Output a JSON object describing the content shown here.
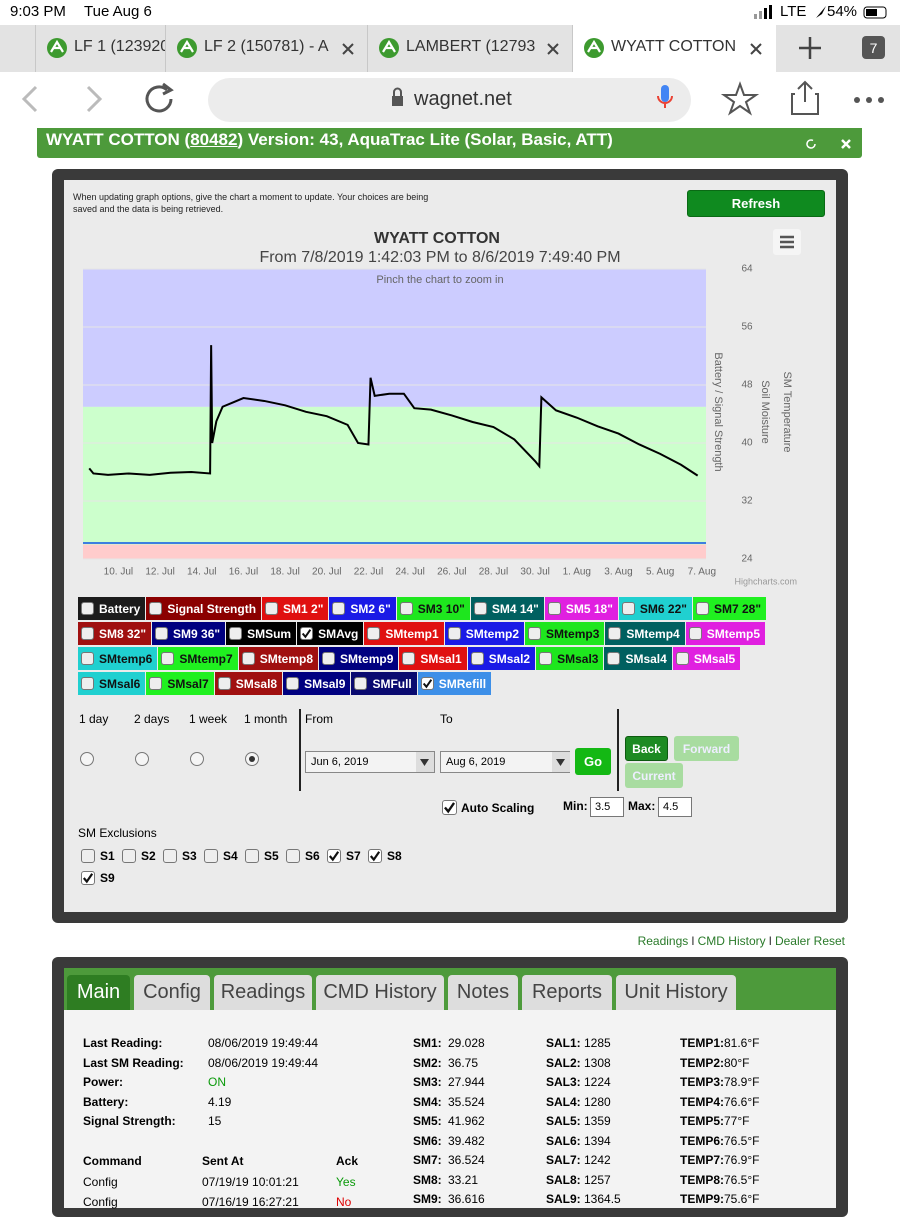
{
  "status_bar": {
    "time": "9:03 PM",
    "date": "Tue Aug 6",
    "network": "LTE",
    "battery": "54%"
  },
  "browser": {
    "tabs": [
      "LF 1 (123920",
      "LF 2 (150781) - A",
      "LAMBERT (12793",
      "WYATT COTTON"
    ],
    "tab_count": "7",
    "url": "wagnet.net"
  },
  "header": {
    "name": "WYATT COTTON (",
    "id": "80482",
    "version": ") Version: 43, AquaTrac Lite (Solar, Basic, ATT)"
  },
  "panel": {
    "notice": "When updating graph options, give the chart a moment to update. Your choices are being saved and the data is being retrieved.",
    "refresh": "Refresh"
  },
  "chart_data": {
    "type": "line",
    "title": "WYATT COTTON",
    "subtitle": "From 7/8/2019 1:42:03 PM to 8/6/2019 7:49:40 PM",
    "annotation": "Pinch the chart to zoom in",
    "credit": "Highcharts.com",
    "y_axis_titles": [
      "Battery / Signal Strength",
      "Soil Moisture",
      "SM Temperature"
    ],
    "x": [
      8.6,
      8.8,
      9.5,
      10.5,
      11.5,
      12.5,
      13.5,
      14.4,
      14.45,
      14.5,
      14.7,
      15,
      15.5,
      16,
      17,
      18,
      19,
      20,
      21,
      21.5,
      22,
      22.1,
      22.3,
      23,
      23.7,
      24.2,
      25,
      26,
      27,
      28,
      29,
      30,
      30.2,
      30.3,
      31,
      32,
      33,
      34,
      35,
      36,
      37,
      37.8
    ],
    "series": [
      {
        "color": "#000000",
        "values": [
          36.5,
          35.8,
          35.6,
          35.8,
          35.6,
          35.9,
          36,
          35.8,
          53.5,
          40,
          43,
          45,
          45.6,
          46.2,
          45.8,
          45.2,
          44.3,
          43.7,
          42.5,
          40,
          39.8,
          49,
          46.5,
          46.8,
          46.8,
          44.8,
          44.6,
          43.8,
          42.9,
          42.2,
          40.5,
          37.5,
          36.8,
          46.3,
          44.5,
          43.5,
          42.3,
          41.3,
          39.8,
          38.5,
          37,
          35.5
        ]
      }
    ],
    "bands": [
      {
        "from": 24,
        "to": 26,
        "color": "#ffcccc"
      },
      {
        "from": 26,
        "to": 45,
        "color": "#ccffcc"
      },
      {
        "from": 45,
        "to": 64,
        "color": "#ccccff"
      }
    ],
    "reference_lines": [
      {
        "value": 26.2,
        "color": "#3d7fe0"
      }
    ],
    "xlim": [
      8.3,
      38.2
    ],
    "xticks": [
      {
        "value": 10,
        "label": "10. Jul"
      },
      {
        "value": 12,
        "label": "12. Jul"
      },
      {
        "value": 14,
        "label": "14. Jul"
      },
      {
        "value": 16,
        "label": "16. Jul"
      },
      {
        "value": 18,
        "label": "18. Jul"
      },
      {
        "value": 20,
        "label": "20. Jul"
      },
      {
        "value": 22,
        "label": "22. Jul"
      },
      {
        "value": 24,
        "label": "24. Jul"
      },
      {
        "value": 26,
        "label": "26. Jul"
      },
      {
        "value": 28,
        "label": "28. Jul"
      },
      {
        "value": 30,
        "label": "30. Jul"
      },
      {
        "value": 32,
        "label": "1. Aug"
      },
      {
        "value": 34,
        "label": "3. Aug"
      },
      {
        "value": 36,
        "label": "5. Aug"
      },
      {
        "value": 38,
        "label": "7. Aug"
      }
    ],
    "ylim": [
      24,
      64
    ],
    "yticks": [
      24,
      32,
      40,
      48,
      56,
      64
    ],
    "grid": true
  },
  "series_toggles": [
    {
      "label": "Battery",
      "color": "#1c1c1c",
      "checked": false
    },
    {
      "label": "Signal Strength",
      "color": "#8b0000",
      "checked": false
    },
    {
      "label": "SM1 2\"",
      "color": "#e01010",
      "checked": false
    },
    {
      "label": "SM2 6\"",
      "color": "#1a1ae6",
      "checked": false
    },
    {
      "label": "SM3 10\"",
      "color": "#1ee61e",
      "checked": false
    },
    {
      "label": "SM4 14\"",
      "color": "#006060",
      "checked": false
    },
    {
      "label": "SM5 18\"",
      "color": "#e020e0",
      "checked": false
    },
    {
      "label": "SM6 22\"",
      "color": "#20d0d0",
      "checked": false
    },
    {
      "label": "SM7 28\"",
      "color": "#20f020",
      "checked": false
    },
    {
      "label": "SM8 32\"",
      "color": "#a01010",
      "checked": false
    },
    {
      "label": "SM9 36\"",
      "color": "#000080",
      "checked": false
    },
    {
      "label": "SMSum",
      "color": "#000000",
      "checked": false
    },
    {
      "label": "SMAvg",
      "color": "#000000",
      "checked": true
    },
    {
      "label": "SMtemp1",
      "color": "#e01010",
      "checked": false
    },
    {
      "label": "SMtemp2",
      "color": "#1a1ae6",
      "checked": false
    },
    {
      "label": "SMtemp3",
      "color": "#1ee61e",
      "checked": false
    },
    {
      "label": "SMtemp4",
      "color": "#006060",
      "checked": false
    },
    {
      "label": "SMtemp5",
      "color": "#e020e0",
      "checked": false
    },
    {
      "label": "SMtemp6",
      "color": "#20d0d0",
      "checked": false
    },
    {
      "label": "SMtemp7",
      "color": "#20f020",
      "checked": false
    },
    {
      "label": "SMtemp8",
      "color": "#a01010",
      "checked": false
    },
    {
      "label": "SMtemp9",
      "color": "#000080",
      "checked": false
    },
    {
      "label": "SMsal1",
      "color": "#e01010",
      "checked": false
    },
    {
      "label": "SMsal2",
      "color": "#1a1ae6",
      "checked": false
    },
    {
      "label": "SMsal3",
      "color": "#1ee61e",
      "checked": false
    },
    {
      "label": "SMsal4",
      "color": "#006060",
      "checked": false
    },
    {
      "label": "SMsal5",
      "color": "#e020e0",
      "checked": false
    },
    {
      "label": "SMsal6",
      "color": "#20d0d0",
      "checked": false
    },
    {
      "label": "SMsal7",
      "color": "#20f020",
      "checked": false
    },
    {
      "label": "SMsal8",
      "color": "#a01010",
      "checked": false
    },
    {
      "label": "SMsal9",
      "color": "#000080",
      "checked": false
    },
    {
      "label": "SMFull",
      "color": "#0a0a70",
      "checked": false
    },
    {
      "label": "SMRefill",
      "color": "#3d8fe8",
      "checked": true
    }
  ],
  "range": {
    "options": [
      {
        "label": "1 day",
        "selected": false
      },
      {
        "label": "2 days",
        "selected": false
      },
      {
        "label": "1 week",
        "selected": false
      },
      {
        "label": "1 month",
        "selected": true
      }
    ],
    "from_label": "From",
    "to_label": "To",
    "from": "Jun 6, 2019",
    "to": "Aug 6, 2019",
    "go": "Go",
    "back": "Back",
    "forward": "Forward",
    "current": "Current",
    "auto_scaling": {
      "label": "Auto Scaling",
      "checked": true
    },
    "min_label": "Min:",
    "min": "3.5",
    "max_label": "Max:",
    "max": "4.5"
  },
  "exclusions": {
    "title": "SM Exclusions",
    "items": [
      {
        "label": "S1",
        "checked": false
      },
      {
        "label": "S2",
        "checked": false
      },
      {
        "label": "S3",
        "checked": false
      },
      {
        "label": "S4",
        "checked": false
      },
      {
        "label": "S5",
        "checked": false
      },
      {
        "label": "S6",
        "checked": false
      },
      {
        "label": "S7",
        "checked": true
      },
      {
        "label": "S8",
        "checked": true
      },
      {
        "label": "S9",
        "checked": true
      }
    ]
  },
  "links": {
    "items": [
      "Readings",
      "CMD History",
      "Dealer Reset"
    ],
    "separator": "I"
  },
  "unit_tabs": {
    "items": [
      "Main",
      "Config",
      "Readings",
      "CMD History",
      "Notes",
      "Reports",
      "Unit History"
    ],
    "active": 0
  },
  "status": [
    [
      "Last Reading:",
      "08/06/2019 19:49:44"
    ],
    [
      "Last SM Reading:",
      "08/06/2019 19:49:44"
    ],
    [
      "Power:",
      "ON"
    ],
    [
      "Battery:",
      "4.19"
    ],
    [
      "Signal Strength:",
      "15"
    ]
  ],
  "sm": [
    [
      "SM1:",
      "29.028"
    ],
    [
      "SM2:",
      "36.75"
    ],
    [
      "SM3:",
      "27.944"
    ],
    [
      "SM4:",
      "35.524"
    ],
    [
      "SM5:",
      "41.962"
    ],
    [
      "SM6:",
      "39.482"
    ],
    [
      "SM7:",
      "36.524"
    ],
    [
      "SM8:",
      "33.21"
    ],
    [
      "SM9:",
      "36.616"
    ]
  ],
  "sal": [
    [
      "SAL1:",
      "1285"
    ],
    [
      "SAL2:",
      "1308"
    ],
    [
      "SAL3:",
      "1224"
    ],
    [
      "SAL4:",
      "1280"
    ],
    [
      "SAL5:",
      "1359"
    ],
    [
      "SAL6:",
      "1394"
    ],
    [
      "SAL7:",
      "1242"
    ],
    [
      "SAL8:",
      "1257"
    ],
    [
      "SAL9:",
      "1364.5"
    ]
  ],
  "temp": [
    [
      "TEMP1:",
      "81.6°F"
    ],
    [
      "TEMP2:",
      "80°F"
    ],
    [
      "TEMP3:",
      "78.9°F"
    ],
    [
      "TEMP4:",
      "76.6°F"
    ],
    [
      "TEMP5:",
      "77°F"
    ],
    [
      "TEMP6:",
      "76.5°F"
    ],
    [
      "TEMP7:",
      "76.9°F"
    ],
    [
      "TEMP8:",
      "76.5°F"
    ],
    [
      "TEMP9:",
      "75.6°F"
    ]
  ],
  "commands": {
    "headers": [
      "Command",
      "Sent At",
      "Ack"
    ],
    "rows": [
      [
        "Config",
        "07/19/19 10:01:21",
        "Yes"
      ],
      [
        "Config",
        "07/16/19 16:27:21",
        "No"
      ]
    ]
  }
}
